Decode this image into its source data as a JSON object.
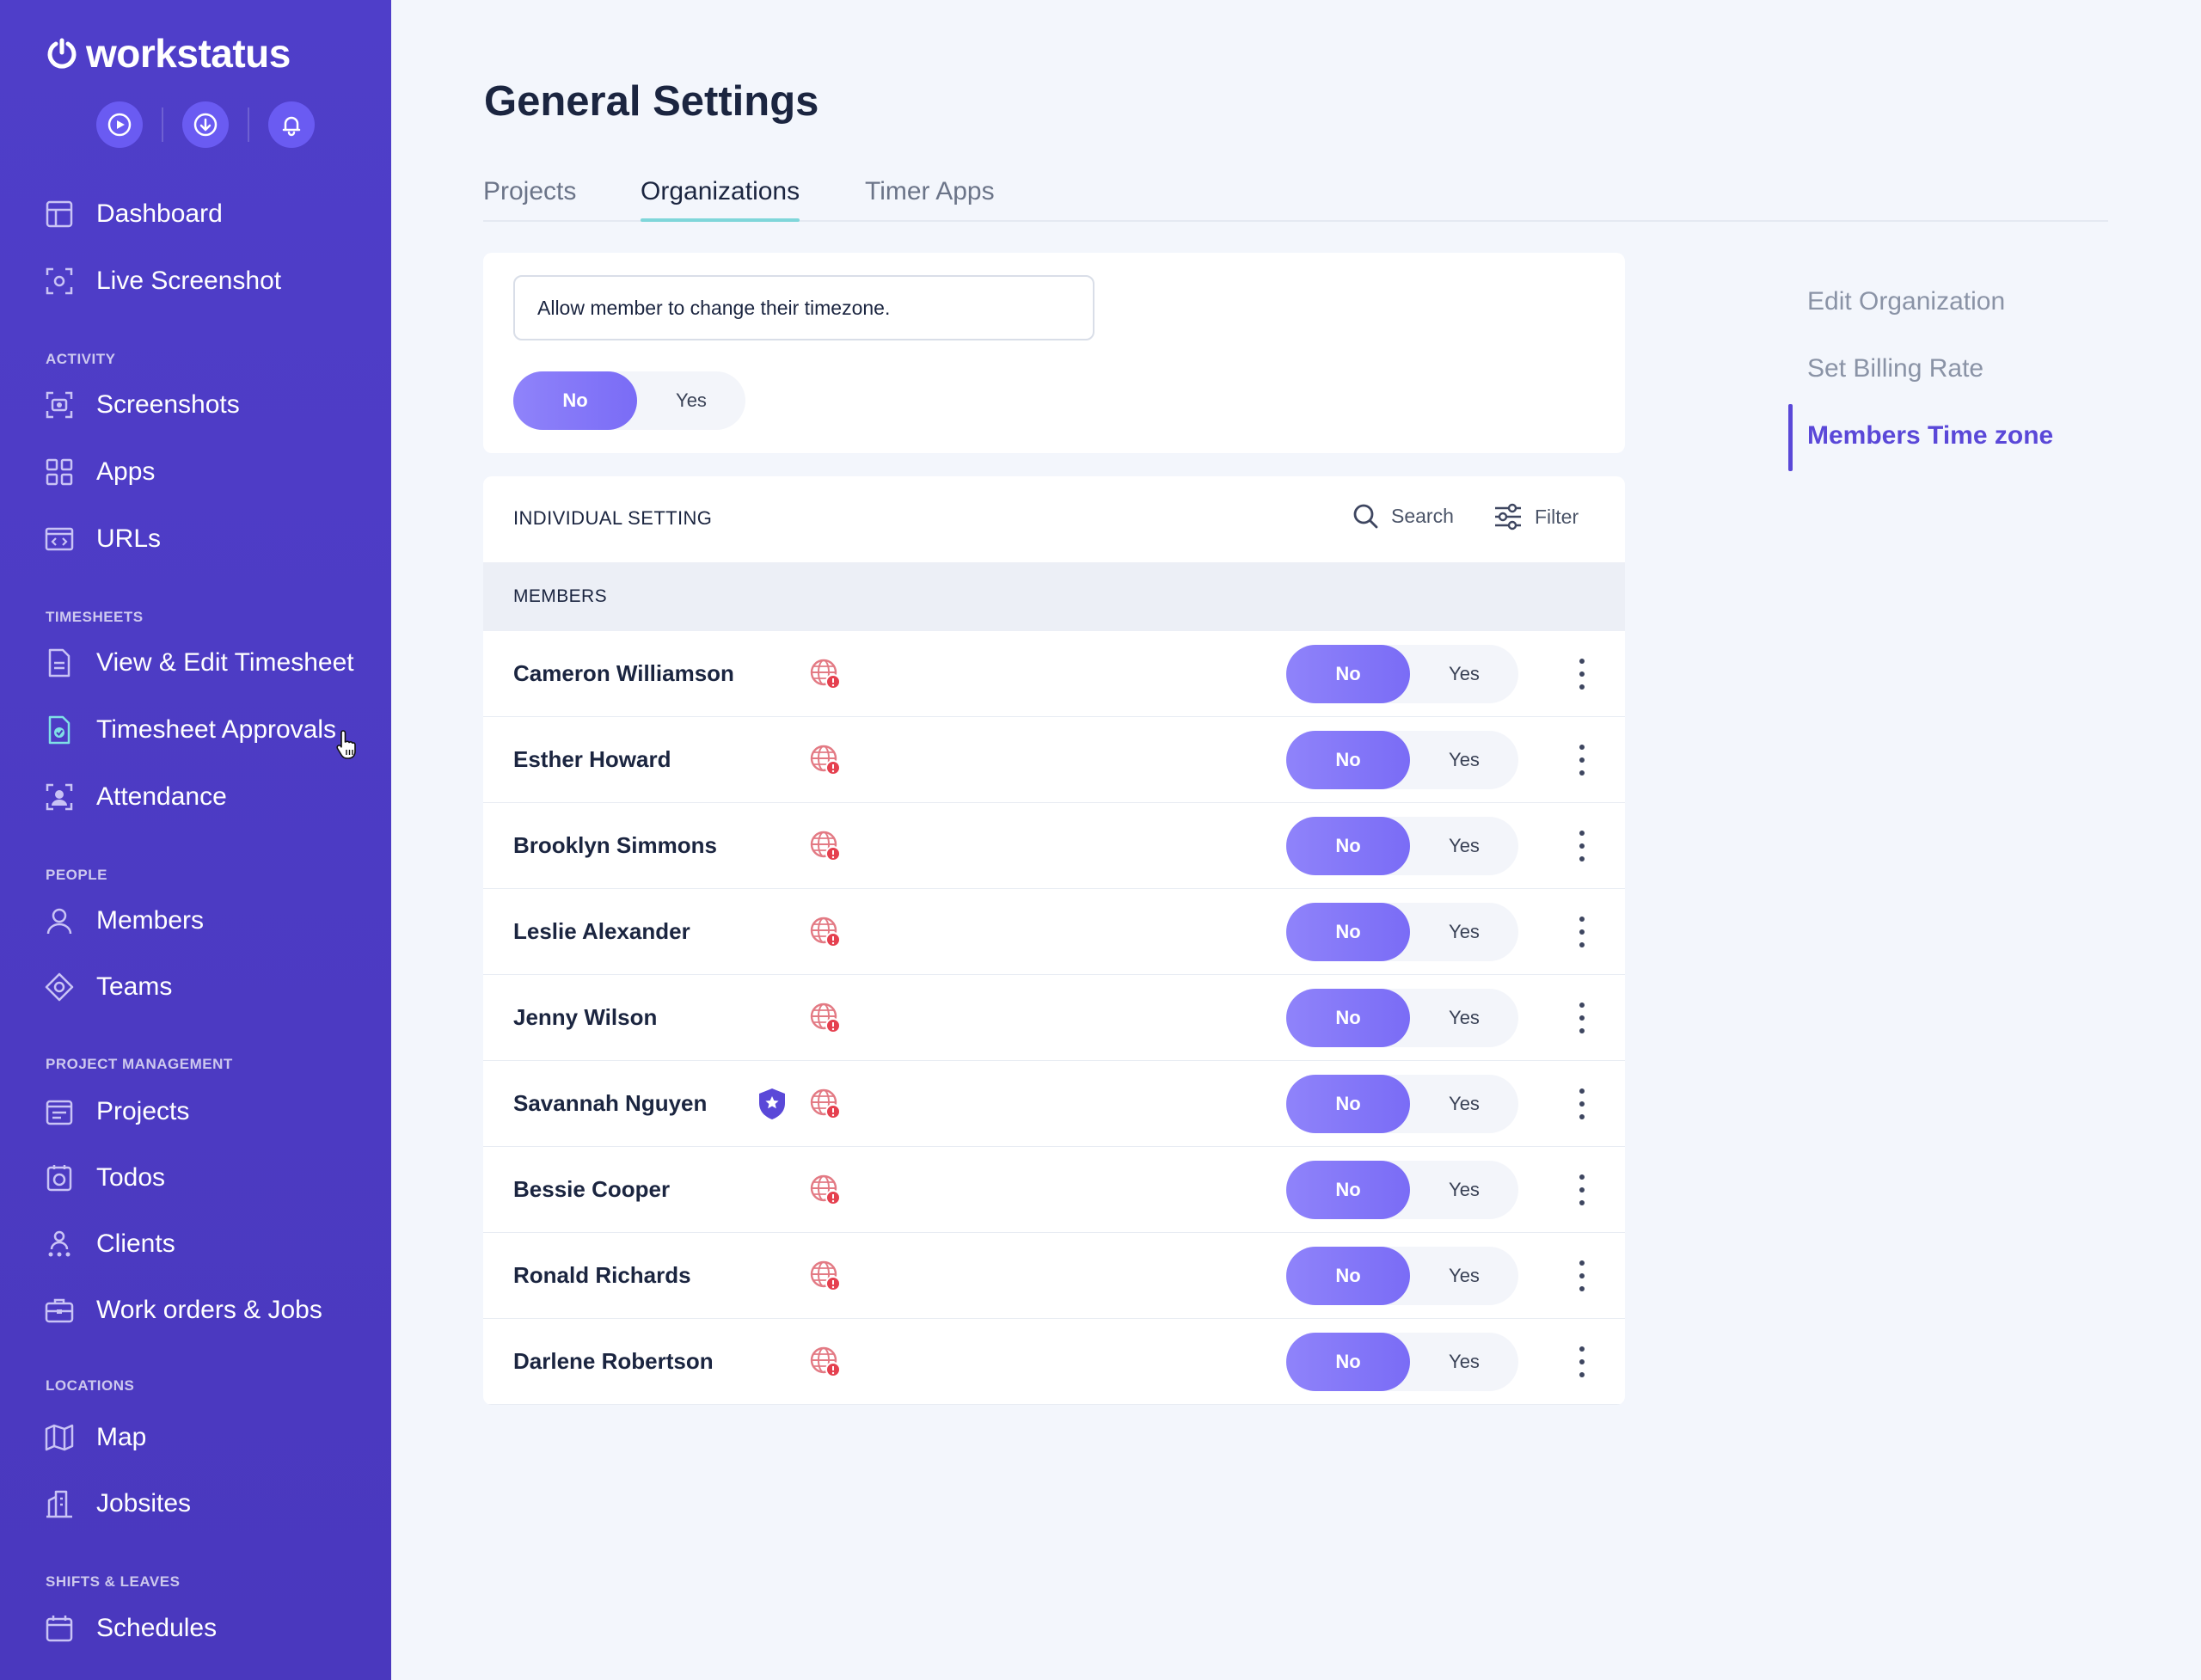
{
  "app": {
    "brand": "workstatus"
  },
  "sidebar": {
    "sections": {
      "activity": "ACTIVITY",
      "timesheets": "TIMESHEETS",
      "people": "PEOPLE",
      "project_management": "PROJECT MANAGEMENT",
      "locations": "LOCATIONS",
      "shifts_leaves": "SHIFTS & LEAVES"
    },
    "items": {
      "dashboard": "Dashboard",
      "live_screenshot": "Live Screenshot",
      "screenshots": "Screenshots",
      "apps": "Apps",
      "urls": "URLs",
      "view_edit_timesheet": "View & Edit Timesheet",
      "timesheet_approvals": "Timesheet Approvals",
      "attendance": "Attendance",
      "members": "Members",
      "teams": "Teams",
      "projects": "Projects",
      "todos": "Todos",
      "clients": "Clients",
      "work_orders": "Work orders & Jobs",
      "map": "Map",
      "jobsites": "Jobsites",
      "schedules": "Schedules"
    }
  },
  "main": {
    "title": "General Settings",
    "tabs": {
      "projects": "Projects",
      "organizations": "Organizations",
      "timer_apps": "Timer Apps"
    },
    "question": "Allow member to change their timezone.",
    "toggle": {
      "no": "No",
      "yes": "Yes",
      "selected": "No"
    },
    "list": {
      "title": "INDIVIDUAL SETTING",
      "search_label": "Search",
      "filter_label": "Filter",
      "members_header": "MEMBERS",
      "members": [
        {
          "name": "Cameron Williamson",
          "no": "No",
          "yes": "Yes",
          "admin": false
        },
        {
          "name": "Esther Howard",
          "no": "No",
          "yes": "Yes",
          "admin": false
        },
        {
          "name": "Brooklyn Simmons",
          "no": "No",
          "yes": "Yes",
          "admin": false
        },
        {
          "name": "Leslie Alexander",
          "no": "No",
          "yes": "Yes",
          "admin": false
        },
        {
          "name": "Jenny Wilson",
          "no": "No",
          "yes": "Yes",
          "admin": false
        },
        {
          "name": "Savannah Nguyen",
          "no": "No",
          "yes": "Yes",
          "admin": true
        },
        {
          "name": "Bessie Cooper",
          "no": "No",
          "yes": "Yes",
          "admin": false
        },
        {
          "name": "Ronald Richards",
          "no": "No",
          "yes": "Yes",
          "admin": false
        },
        {
          "name": "Darlene Robertson",
          "no": "No",
          "yes": "Yes",
          "admin": false
        }
      ]
    }
  },
  "right_nav": {
    "items": {
      "edit_org": "Edit Organization",
      "billing": "Set Billing Rate",
      "timezone": "Members Time zone"
    },
    "active": "Members Time zone"
  },
  "colors": {
    "sidebar": "#4F3EC9",
    "accent": "#7A6CF6",
    "active_tab_underline": "#7FD6DA",
    "right_nav_active": "#5A48D8",
    "globe_warning": "#E5404F"
  }
}
